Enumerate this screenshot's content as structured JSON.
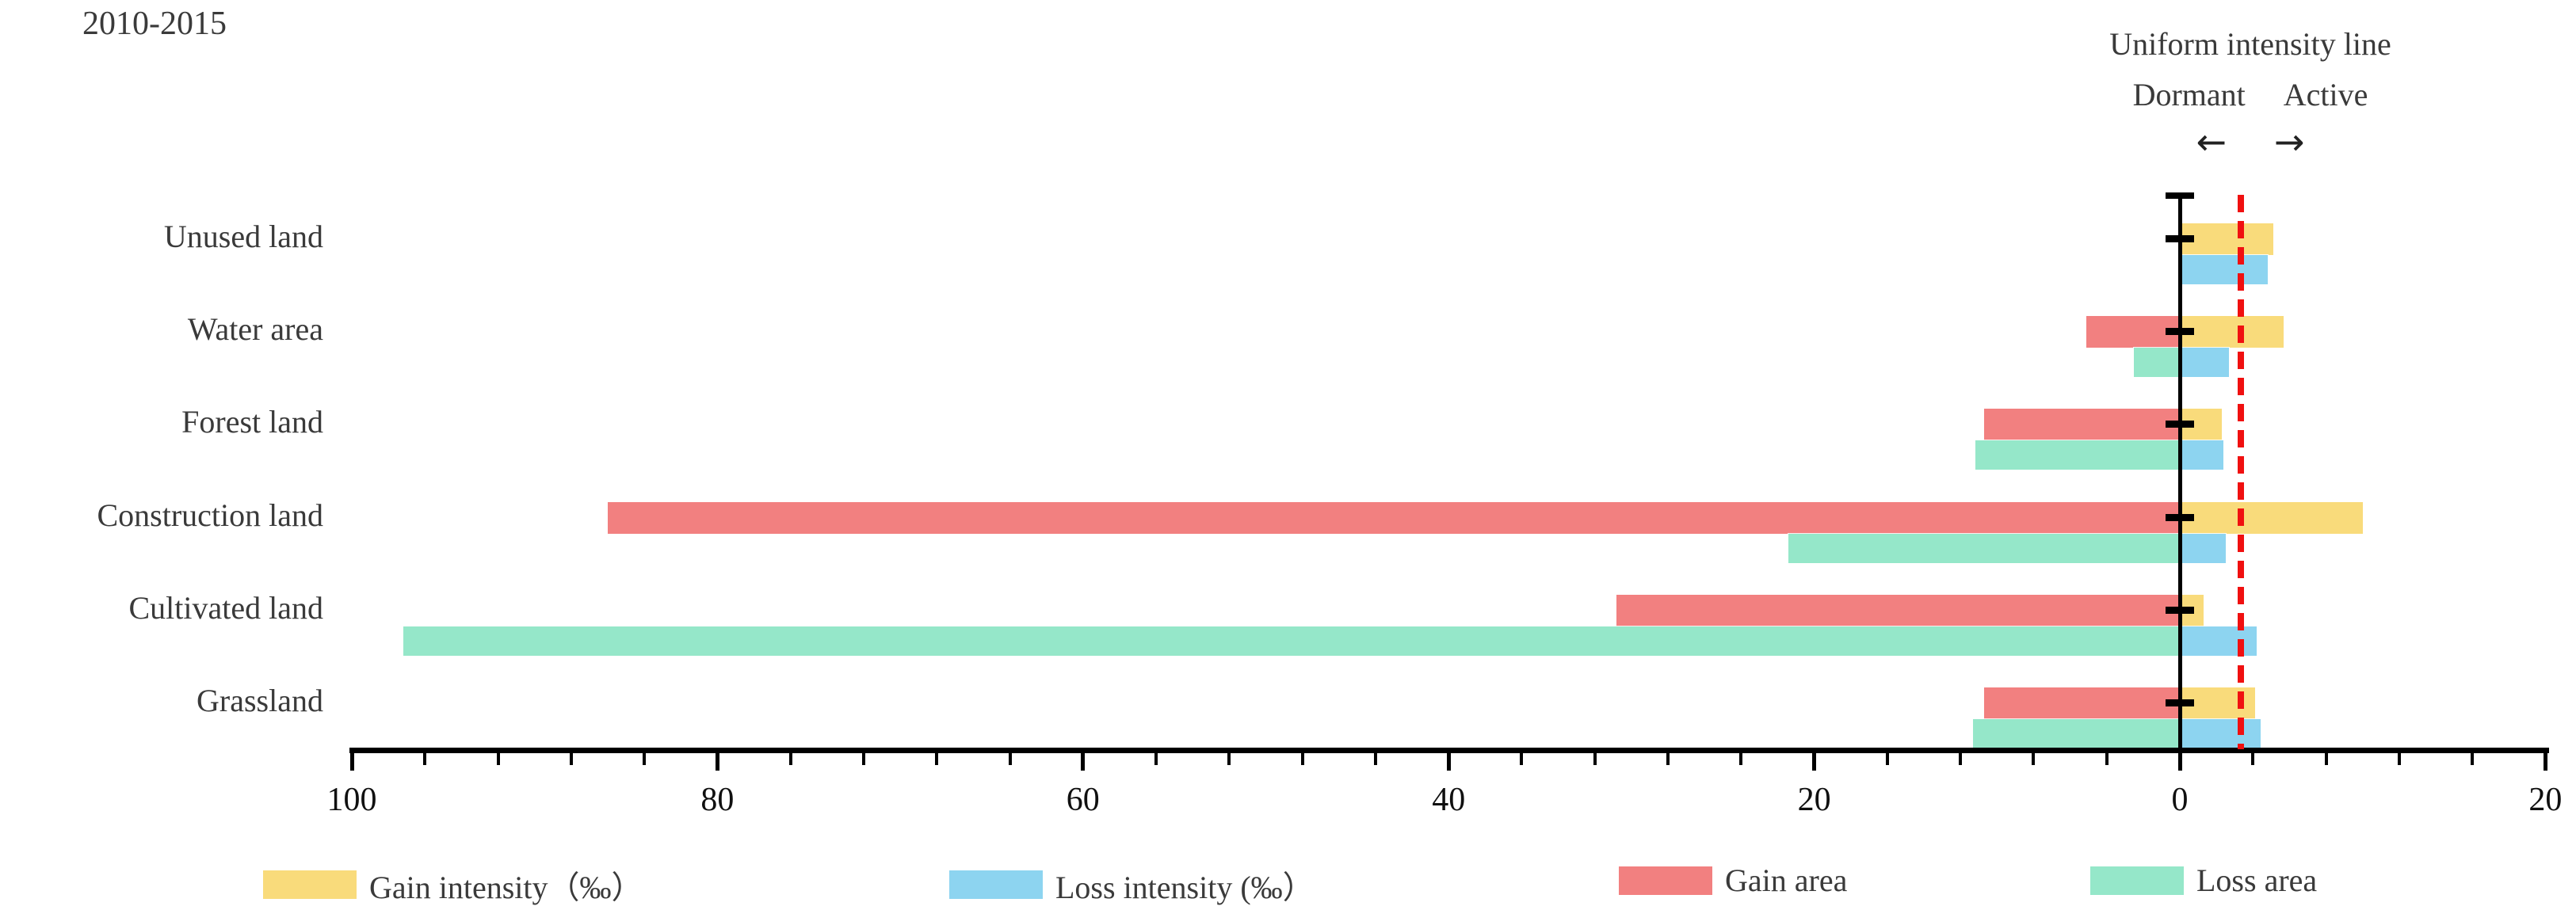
{
  "title": "2010-2015",
  "annotations": {
    "uniform_line_label": "Uniform intensity line",
    "dormant": "Dormant",
    "active": "Active",
    "left_arrow": "←",
    "right_arrow": "→"
  },
  "chart_data": {
    "type": "bar",
    "orientation": "horizontal-diverging",
    "title": "2010-2015",
    "categories": [
      "Unused land",
      "Water area",
      "Forest land",
      "Construction land",
      "Cultivated land",
      "Grassland"
    ],
    "series": [
      {
        "name": "Gain intensity（‰）",
        "color": "#F9DB7B",
        "direction": "right",
        "values": [
          5.1,
          5.7,
          2.3,
          10.0,
          1.3,
          4.1
        ]
      },
      {
        "name": "Loss intensity (‰）",
        "color": "#8DD4F0",
        "direction": "right",
        "values": [
          4.8,
          2.7,
          2.4,
          2.5,
          4.2,
          4.4
        ]
      },
      {
        "name": "Gain area",
        "color": "#F28080",
        "direction": "left",
        "values": [
          0,
          5.1,
          10.7,
          86.0,
          30.8,
          10.7
        ]
      },
      {
        "name": "Loss area",
        "color": "#95E7C9",
        "direction": "left",
        "values": [
          0,
          2.5,
          11.2,
          21.4,
          97.2,
          11.3
        ]
      }
    ],
    "x_axis": {
      "tick_labels": [
        "100",
        "80",
        "60",
        "40",
        "20",
        "0",
        "20"
      ],
      "tick_values": [
        100,
        80,
        60,
        40,
        20,
        0,
        -20
      ],
      "minor_tick_step": 4,
      "left_max": 100,
      "right_max": 20
    },
    "uniform_intensity_line_value": 3.3,
    "uniform_line_color": "#F01010",
    "grid": false,
    "legend_position": "bottom"
  },
  "legend": {
    "items": [
      {
        "label": "Gain intensity（‰）",
        "color": "#F9DB7B"
      },
      {
        "label": "Loss intensity (‰）",
        "color": "#8DD4F0"
      },
      {
        "label": "Gain area",
        "color": "#F28080"
      },
      {
        "label": "Loss area",
        "color": "#95E7C9"
      }
    ]
  }
}
